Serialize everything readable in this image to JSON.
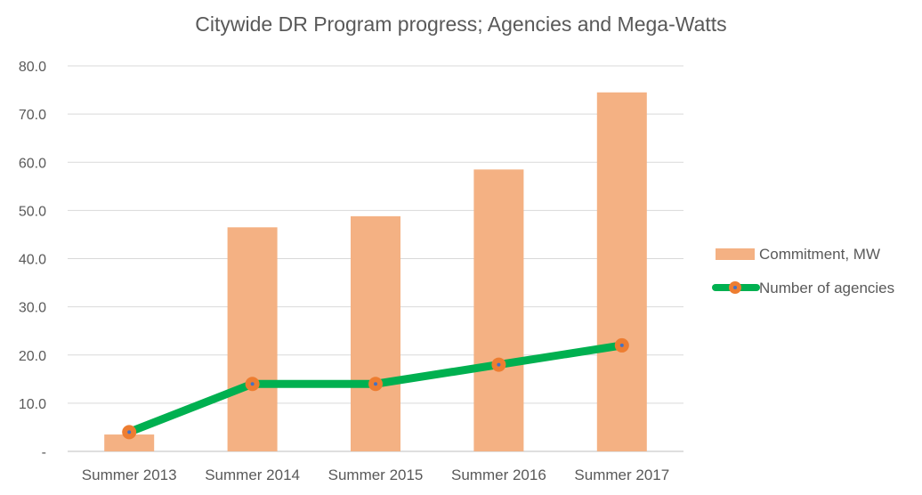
{
  "chart_data": {
    "type": "bar",
    "title": "Citywide DR Program progress; Agencies and Mega-Watts",
    "xlabel": "",
    "ylabel": "",
    "categories": [
      "Summer 2013",
      "Summer 2014",
      "Summer 2015",
      "Summer 2016",
      "Summer 2017"
    ],
    "ylim": [
      0,
      80
    ],
    "y_ticks": [
      0,
      10,
      20,
      30,
      40,
      50,
      60,
      70,
      80
    ],
    "y_tick_labels": [
      "-",
      "10.0",
      "20.0",
      "30.0",
      "40.0",
      "50.0",
      "60.0",
      "70.0",
      "80.0"
    ],
    "grid": true,
    "legend_position": "right",
    "series": [
      {
        "name": "Commitment, MW",
        "type": "bar",
        "color": "#F4B183",
        "values": [
          3.5,
          46.5,
          48.8,
          58.5,
          74.5
        ]
      },
      {
        "name": "Number of agencies",
        "type": "line",
        "color": "#00B050",
        "marker_color": "#ED7D31",
        "values": [
          4,
          14,
          14,
          18,
          22
        ]
      }
    ]
  }
}
